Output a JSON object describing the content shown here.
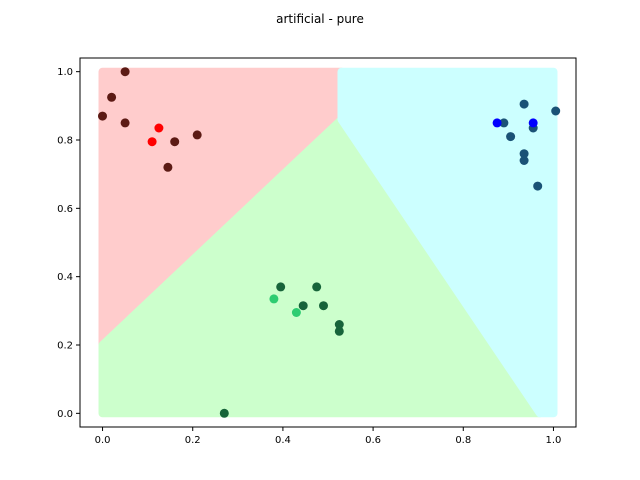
{
  "chart_data": {
    "type": "scatter",
    "title": "artificial - pure",
    "xlabel": "",
    "ylabel": "",
    "xlim": [
      -0.05,
      1.05
    ],
    "ylim": [
      -0.04,
      1.04
    ],
    "x_ticks": [
      "0.0",
      "0.2",
      "0.4",
      "0.6",
      "0.8",
      "1.0"
    ],
    "y_ticks": [
      "0.0",
      "0.2",
      "0.4",
      "0.6",
      "0.8",
      "1.0"
    ],
    "grid": false,
    "legend": "none",
    "regions": [
      {
        "label": "red-region",
        "color": "#ffcccc",
        "polygon": [
          [
            0,
            0.2
          ],
          [
            0.53,
            0.86
          ],
          [
            0.53,
            1.0
          ],
          [
            0,
            1.0
          ]
        ]
      },
      {
        "label": "green-region",
        "color": "#ccffcc",
        "polygon": [
          [
            0,
            0
          ],
          [
            0.97,
            0
          ],
          [
            0.53,
            0.86
          ],
          [
            0,
            0.2
          ]
        ]
      },
      {
        "label": "cyan-region",
        "color": "#ccffff",
        "polygon": [
          [
            0.53,
            0.86
          ],
          [
            0.53,
            1.0
          ],
          [
            1.0,
            1.0
          ],
          [
            1.0,
            0
          ],
          [
            0.97,
            0
          ]
        ]
      }
    ],
    "series": [
      {
        "color": "#5c1a14",
        "points": [
          [
            0.05,
            1.0
          ],
          [
            0.02,
            0.925
          ],
          [
            0.0,
            0.87
          ],
          [
            0.05,
            0.85
          ],
          [
            0.16,
            0.795
          ],
          [
            0.21,
            0.815
          ],
          [
            0.145,
            0.72
          ]
        ]
      },
      {
        "color": "#ff0000",
        "points": [
          [
            0.125,
            0.835
          ],
          [
            0.11,
            0.795
          ]
        ]
      },
      {
        "color": "#17643a",
        "points": [
          [
            0.395,
            0.37
          ],
          [
            0.475,
            0.37
          ],
          [
            0.445,
            0.315
          ],
          [
            0.49,
            0.315
          ],
          [
            0.525,
            0.26
          ],
          [
            0.525,
            0.24
          ],
          [
            0.27,
            0.0
          ]
        ]
      },
      {
        "color": "#2ecc71",
        "points": [
          [
            0.38,
            0.335
          ],
          [
            0.43,
            0.295
          ]
        ]
      },
      {
        "color": "#1a5276",
        "points": [
          [
            0.935,
            0.905
          ],
          [
            1.005,
            0.885
          ],
          [
            0.89,
            0.85
          ],
          [
            0.955,
            0.835
          ],
          [
            0.905,
            0.81
          ],
          [
            0.935,
            0.76
          ],
          [
            0.935,
            0.74
          ],
          [
            0.965,
            0.665
          ]
        ]
      },
      {
        "color": "#0000ff",
        "points": [
          [
            0.875,
            0.85
          ],
          [
            0.955,
            0.85
          ]
        ]
      }
    ]
  }
}
